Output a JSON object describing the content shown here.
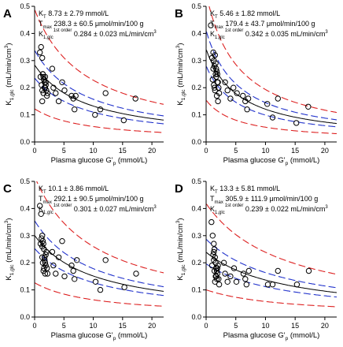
{
  "figure": {
    "xlabel": "Plasma glucose G'",
    "xlabel_sub": "p",
    "xlabel_unit": " (mmol/L)",
    "ylabel": "K",
    "ylabel_sub": "1,glc",
    "ylabel_unit": " (mL/min/cm",
    "ylabel_sup": "3",
    "ylabel_end": ")"
  },
  "chart_data": [
    {
      "panel": "A",
      "type": "scatter",
      "xlim": [
        0,
        22
      ],
      "ylim": [
        0,
        0.5
      ],
      "xticks": [
        0,
        5,
        10,
        15,
        20
      ],
      "yticks": [
        0.0,
        0.1,
        0.2,
        0.3,
        0.4,
        0.5
      ],
      "grid": false,
      "annotations": [
        {
          "main": "K",
          "sub": "T",
          "rest": " 8.73 ± 2.79 mmol/L"
        },
        {
          "main": "T",
          "sub": "max",
          "rest": " 238.3 ± 60.5 μmol/min/100 g"
        },
        {
          "main": "K",
          "sub": "1,glc",
          "sup": "1st order",
          "rest": " 0.284 ± 0.023 mL/min/cm",
          "rest_sup": "3"
        }
      ],
      "model": {
        "KT": 8.73,
        "Tmax": 238.3,
        "K1": 0.284
      },
      "series": [
        {
          "kind": "points",
          "marker": "open-circle",
          "color": "#000000",
          "x": [
            0.9,
            1.1,
            1.3,
            1.4,
            1.5,
            1.6,
            1.7,
            1.8,
            1.9,
            2.0,
            2.1,
            1.2,
            1.3,
            1.5,
            1.7,
            1.9,
            2.2,
            1.0,
            1.4,
            1.6,
            1.8,
            3.0,
            3.2,
            3.6,
            4.1,
            4.7,
            5.1,
            6.3,
            6.6,
            6.8,
            7.0,
            10.3,
            11.2,
            12.1,
            15.2,
            17.2,
            1.3
          ],
          "y": [
            0.33,
            0.35,
            0.31,
            0.25,
            0.24,
            0.23,
            0.22,
            0.24,
            0.21,
            0.19,
            0.17,
            0.21,
            0.19,
            0.18,
            0.2,
            0.22,
            0.18,
            0.24,
            0.25,
            0.23,
            0.2,
            0.27,
            0.2,
            0.18,
            0.15,
            0.22,
            0.19,
            0.17,
            0.16,
            0.12,
            0.17,
            0.1,
            0.12,
            0.18,
            0.08,
            0.16,
            0.15
          ]
        },
        {
          "kind": "fit",
          "color": "#000000",
          "dash": "solid",
          "scale": 1.0
        },
        {
          "kind": "ci",
          "color": "#2233cc",
          "dash": "dashed",
          "scale_lo": 0.83,
          "scale_hi": 1.19
        },
        {
          "kind": "pi",
          "color": "#dd2222",
          "dash": "dashed",
          "scale_lo": 0.43,
          "scale_hi": 1.72
        }
      ]
    },
    {
      "panel": "B",
      "type": "scatter",
      "xlim": [
        0,
        22
      ],
      "ylim": [
        0,
        0.5
      ],
      "xticks": [
        0,
        5,
        10,
        15,
        20
      ],
      "yticks": [
        0.0,
        0.1,
        0.2,
        0.3,
        0.4,
        0.5
      ],
      "grid": false,
      "annotations": [
        {
          "main": "K",
          "sub": "T",
          "rest": " 5.46 ± 1.82 mmol/L"
        },
        {
          "main": "T",
          "sub": "max",
          "rest": " 179.4 ± 43.7 μmol/min/100 g"
        },
        {
          "main": "K",
          "sub": "1,glc",
          "sup": "1st order",
          "rest": " 0.342 ± 0.035 mL/min/cm",
          "rest_sup": "3"
        }
      ],
      "model": {
        "KT": 5.46,
        "Tmax": 179.4,
        "K1": 0.342
      },
      "series": [
        {
          "kind": "points",
          "marker": "open-circle",
          "color": "#000000",
          "x": [
            0.8,
            1.0,
            1.2,
            1.3,
            1.4,
            1.5,
            1.6,
            1.7,
            1.8,
            1.9,
            2.0,
            2.1,
            1.1,
            1.3,
            1.5,
            1.7,
            1.9,
            2.2,
            1.2,
            1.6,
            1.8,
            2.0,
            3.2,
            3.6,
            4.1,
            4.6,
            5.2,
            6.2,
            6.6,
            6.9,
            7.1,
            10.3,
            11.2,
            12.1,
            15.2,
            17.2,
            1.4
          ],
          "y": [
            0.43,
            0.31,
            0.33,
            0.3,
            0.28,
            0.32,
            0.29,
            0.27,
            0.26,
            0.25,
            0.22,
            0.2,
            0.23,
            0.21,
            0.19,
            0.24,
            0.22,
            0.18,
            0.27,
            0.25,
            0.17,
            0.15,
            0.22,
            0.19,
            0.16,
            0.2,
            0.18,
            0.17,
            0.15,
            0.12,
            0.16,
            0.14,
            0.09,
            0.16,
            0.07,
            0.13,
            0.2
          ]
        },
        {
          "kind": "fit",
          "color": "#000000",
          "dash": "solid",
          "scale": 1.0
        },
        {
          "kind": "ci",
          "color": "#2233cc",
          "dash": "dashed",
          "scale_lo": 0.82,
          "scale_hi": 1.2
        },
        {
          "kind": "pi",
          "color": "#dd2222",
          "dash": "dashed",
          "scale_lo": 0.45,
          "scale_hi": 1.6
        }
      ]
    },
    {
      "panel": "C",
      "type": "scatter",
      "xlim": [
        0,
        22
      ],
      "ylim": [
        0,
        0.5
      ],
      "xticks": [
        0,
        5,
        10,
        15,
        20
      ],
      "yticks": [
        0.0,
        0.1,
        0.2,
        0.3,
        0.4,
        0.5
      ],
      "grid": false,
      "annotations": [
        {
          "main": "K",
          "sub": "T",
          "rest": " 10.1 ± 3.86 mmol/L"
        },
        {
          "main": "T",
          "sub": "max",
          "rest": " 292.1 ± 90.5 μmol/min/100 g"
        },
        {
          "main": "K",
          "sub": "1,glc",
          "sup": "1st order",
          "rest": " 0.301 ± 0.027 mL/min/cm",
          "rest_sup": "3"
        }
      ],
      "model": {
        "KT": 10.1,
        "Tmax": 292.1,
        "K1": 0.301
      },
      "series": [
        {
          "kind": "points",
          "marker": "open-circle",
          "color": "#000000",
          "x": [
            0.9,
            1.1,
            1.3,
            1.4,
            1.5,
            1.6,
            1.7,
            1.8,
            1.9,
            2.0,
            2.1,
            1.2,
            1.3,
            1.5,
            1.7,
            1.9,
            2.2,
            1.0,
            1.4,
            1.6,
            1.8,
            3.0,
            3.2,
            3.6,
            4.1,
            4.7,
            5.1,
            6.3,
            6.6,
            6.8,
            7.2,
            10.4,
            11.2,
            12.1,
            15.3,
            17.3,
            1.3
          ],
          "y": [
            0.41,
            0.38,
            0.3,
            0.28,
            0.27,
            0.25,
            0.22,
            0.2,
            0.19,
            0.24,
            0.18,
            0.29,
            0.26,
            0.17,
            0.21,
            0.23,
            0.16,
            0.27,
            0.2,
            0.18,
            0.16,
            0.24,
            0.19,
            0.16,
            0.22,
            0.28,
            0.15,
            0.19,
            0.17,
            0.14,
            0.21,
            0.13,
            0.1,
            0.21,
            0.11,
            0.16,
            0.22
          ]
        },
        {
          "kind": "fit",
          "color": "#000000",
          "dash": "solid",
          "scale": 1.0
        },
        {
          "kind": "ci",
          "color": "#2233cc",
          "dash": "dashed",
          "scale_lo": 0.84,
          "scale_hi": 1.18
        },
        {
          "kind": "pi",
          "color": "#dd2222",
          "dash": "dashed",
          "scale_lo": 0.42,
          "scale_hi": 1.72
        }
      ]
    },
    {
      "panel": "D",
      "type": "scatter",
      "xlim": [
        0,
        22
      ],
      "ylim": [
        0,
        0.5
      ],
      "xticks": [
        0,
        5,
        10,
        15,
        20
      ],
      "yticks": [
        0.0,
        0.1,
        0.2,
        0.3,
        0.4,
        0.5
      ],
      "grid": false,
      "annotations": [
        {
          "main": "K",
          "sub": "T",
          "rest": " 13.3 ± 5.81 mmol/L"
        },
        {
          "main": "T",
          "sub": "max",
          "rest": " 305.9 ± 111.9 μmol/min/100 g"
        },
        {
          "main": "K",
          "sub": "1,glc",
          "sup": "1st order",
          "rest": " 0.239 ± 0.022 mL/min/cm",
          "rest_sup": "3"
        }
      ],
      "model": {
        "KT": 13.3,
        "Tmax": 305.9,
        "K1": 0.239
      },
      "series": [
        {
          "kind": "points",
          "marker": "open-circle",
          "color": "#000000",
          "x": [
            0.9,
            1.1,
            1.3,
            1.4,
            1.5,
            1.6,
            1.7,
            1.8,
            1.9,
            2.0,
            2.1,
            1.2,
            1.3,
            1.5,
            1.7,
            1.9,
            2.2,
            1.0,
            1.4,
            1.6,
            1.8,
            3.0,
            3.2,
            3.6,
            4.1,
            4.7,
            5.1,
            6.3,
            6.6,
            6.8,
            7.2,
            10.4,
            11.2,
            12.1,
            15.3,
            17.3,
            1.3
          ],
          "y": [
            0.35,
            0.3,
            0.27,
            0.25,
            0.22,
            0.2,
            0.18,
            0.17,
            0.16,
            0.19,
            0.14,
            0.23,
            0.21,
            0.13,
            0.15,
            0.18,
            0.12,
            0.19,
            0.17,
            0.15,
            0.14,
            0.2,
            0.16,
            0.13,
            0.15,
            0.18,
            0.13,
            0.16,
            0.14,
            0.12,
            0.17,
            0.12,
            0.12,
            0.17,
            0.12,
            0.17,
            0.24
          ]
        },
        {
          "kind": "fit",
          "color": "#000000",
          "dash": "solid",
          "scale": 1.0
        },
        {
          "kind": "ci",
          "color": "#2233cc",
          "dash": "dashed",
          "scale_lo": 0.82,
          "scale_hi": 1.2
        },
        {
          "kind": "pi",
          "color": "#dd2222",
          "dash": "dashed",
          "scale_lo": 0.42,
          "scale_hi": 1.75
        }
      ]
    }
  ]
}
